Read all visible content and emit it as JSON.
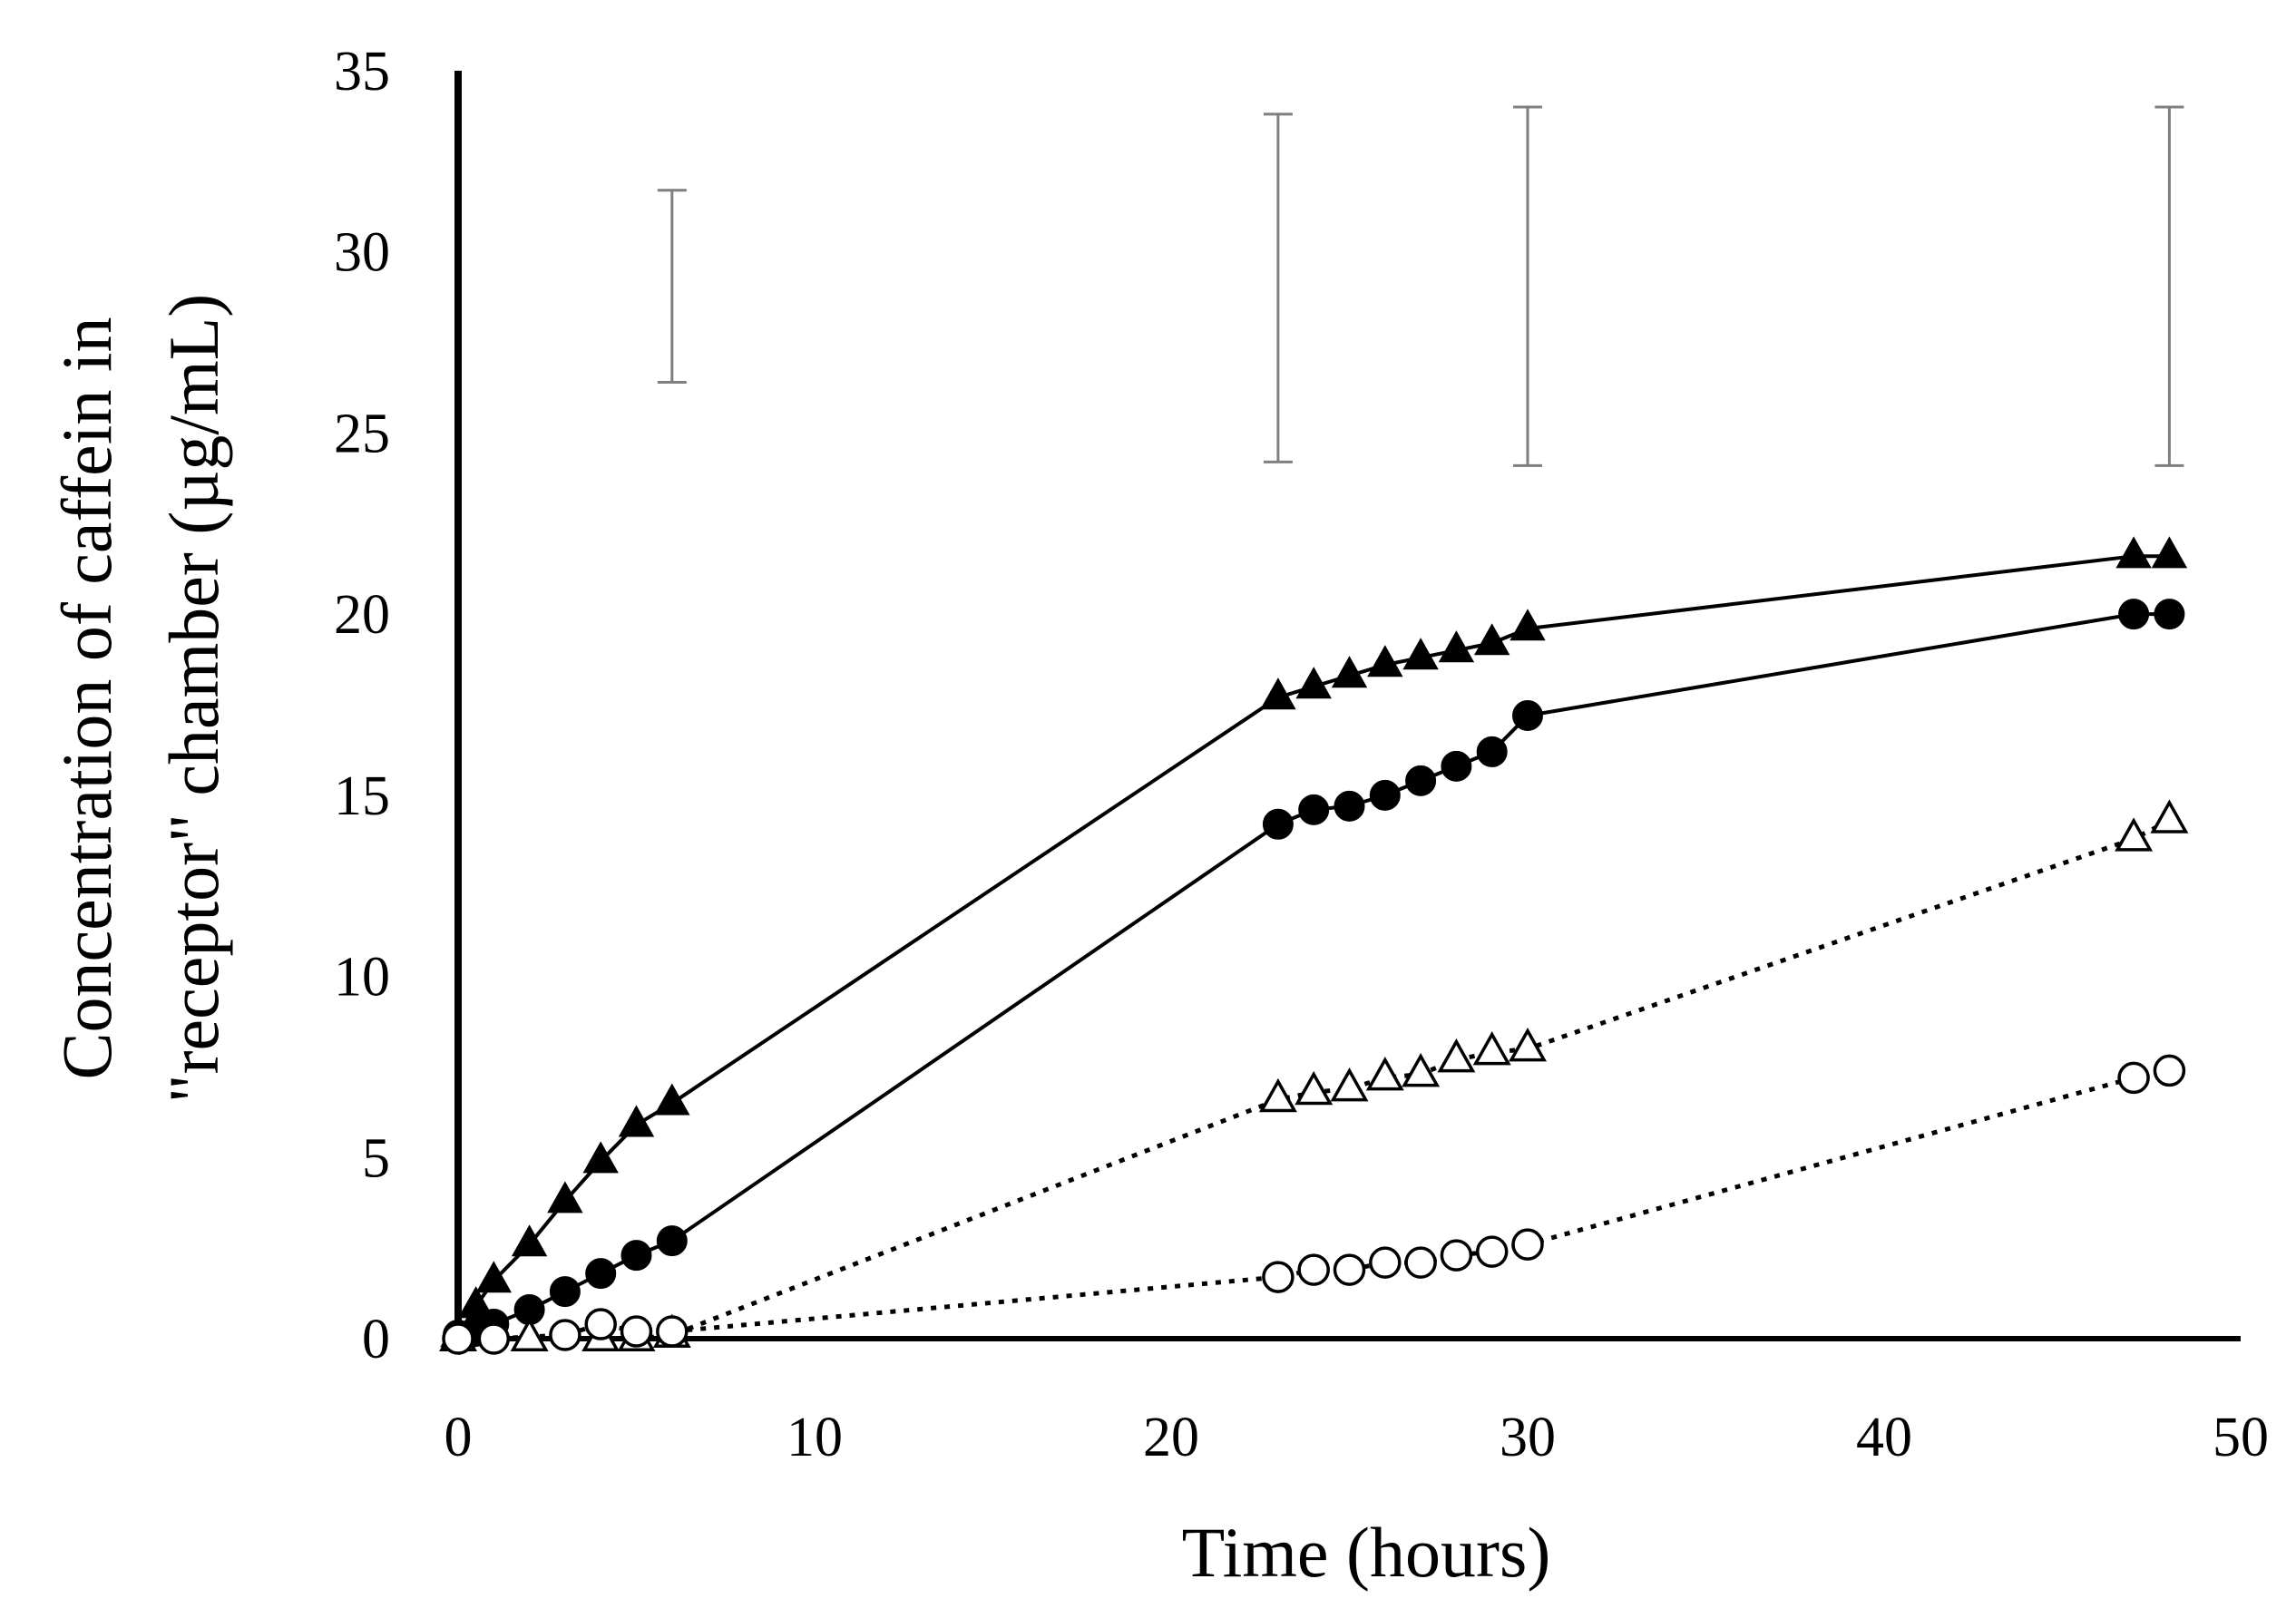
{
  "chart_data": {
    "type": "line",
    "title": "",
    "xlabel": "Time (hours)",
    "ylabel_lines": [
      "Concentration of caffein in",
      "\"receptor\" chamber (µg/mL)"
    ],
    "xlim": [
      0,
      50
    ],
    "ylim": [
      0,
      35
    ],
    "x_ticks": [
      0,
      10,
      20,
      30,
      40,
      50
    ],
    "y_ticks": [
      0,
      5,
      10,
      15,
      20,
      25,
      30,
      35
    ],
    "grid": false,
    "legend": "none",
    "series": [
      {
        "name": "filled-triangle",
        "marker": "triangle",
        "filled": true,
        "line": "solid",
        "x": [
          0,
          0.5,
          1,
          2,
          3,
          4,
          5,
          6,
          23,
          24,
          25,
          26,
          27,
          28,
          29,
          30,
          47,
          48
        ],
        "y": [
          0.1,
          0.9,
          1.6,
          2.6,
          3.8,
          4.9,
          5.9,
          6.5,
          17.7,
          18.0,
          18.3,
          18.6,
          18.8,
          19.0,
          19.2,
          19.6,
          21.6,
          21.6
        ]
      },
      {
        "name": "filled-circle",
        "marker": "circle",
        "filled": true,
        "line": "solid",
        "x": [
          0,
          0.5,
          1,
          2,
          3,
          4,
          5,
          6,
          23,
          24,
          25,
          26,
          27,
          28,
          29,
          30,
          47,
          48
        ],
        "y": [
          0.1,
          0.2,
          0.4,
          0.8,
          1.3,
          1.8,
          2.3,
          2.7,
          14.2,
          14.6,
          14.7,
          15.0,
          15.4,
          15.8,
          16.2,
          17.2,
          20.0,
          20.0
        ]
      },
      {
        "name": "open-triangle",
        "marker": "triangle",
        "filled": false,
        "line": "dotted",
        "x": [
          0,
          2,
          4,
          5,
          6,
          23,
          24,
          25,
          26,
          27,
          28,
          29,
          30,
          47,
          48
        ],
        "y": [
          0,
          0,
          0,
          0,
          0.1,
          6.6,
          6.8,
          6.9,
          7.2,
          7.3,
          7.7,
          7.9,
          8.0,
          13.8,
          14.3
        ]
      },
      {
        "name": "open-circle",
        "marker": "circle",
        "filled": false,
        "line": "dotted",
        "x": [
          0,
          1,
          3,
          4,
          5,
          6,
          23,
          24,
          25,
          26,
          27,
          28,
          29,
          30,
          47,
          48
        ],
        "y": [
          0,
          0,
          0.1,
          0.4,
          0.2,
          0.2,
          1.7,
          1.9,
          1.9,
          2.1,
          2.1,
          2.3,
          2.4,
          2.6,
          7.2,
          7.4
        ]
      }
    ],
    "error_bars": [
      {
        "x": 6,
        "low": 26.4,
        "high": 31.7
      },
      {
        "x": 23,
        "low": 24.2,
        "high": 33.8
      },
      {
        "x": 30,
        "low": 24.1,
        "high": 34.0
      },
      {
        "x": 48,
        "low": 24.1,
        "high": 34.0
      }
    ]
  },
  "colors": {
    "axis": "#000000",
    "series": "#000000",
    "error_bar": "#7f7f7f",
    "background": "#ffffff"
  }
}
